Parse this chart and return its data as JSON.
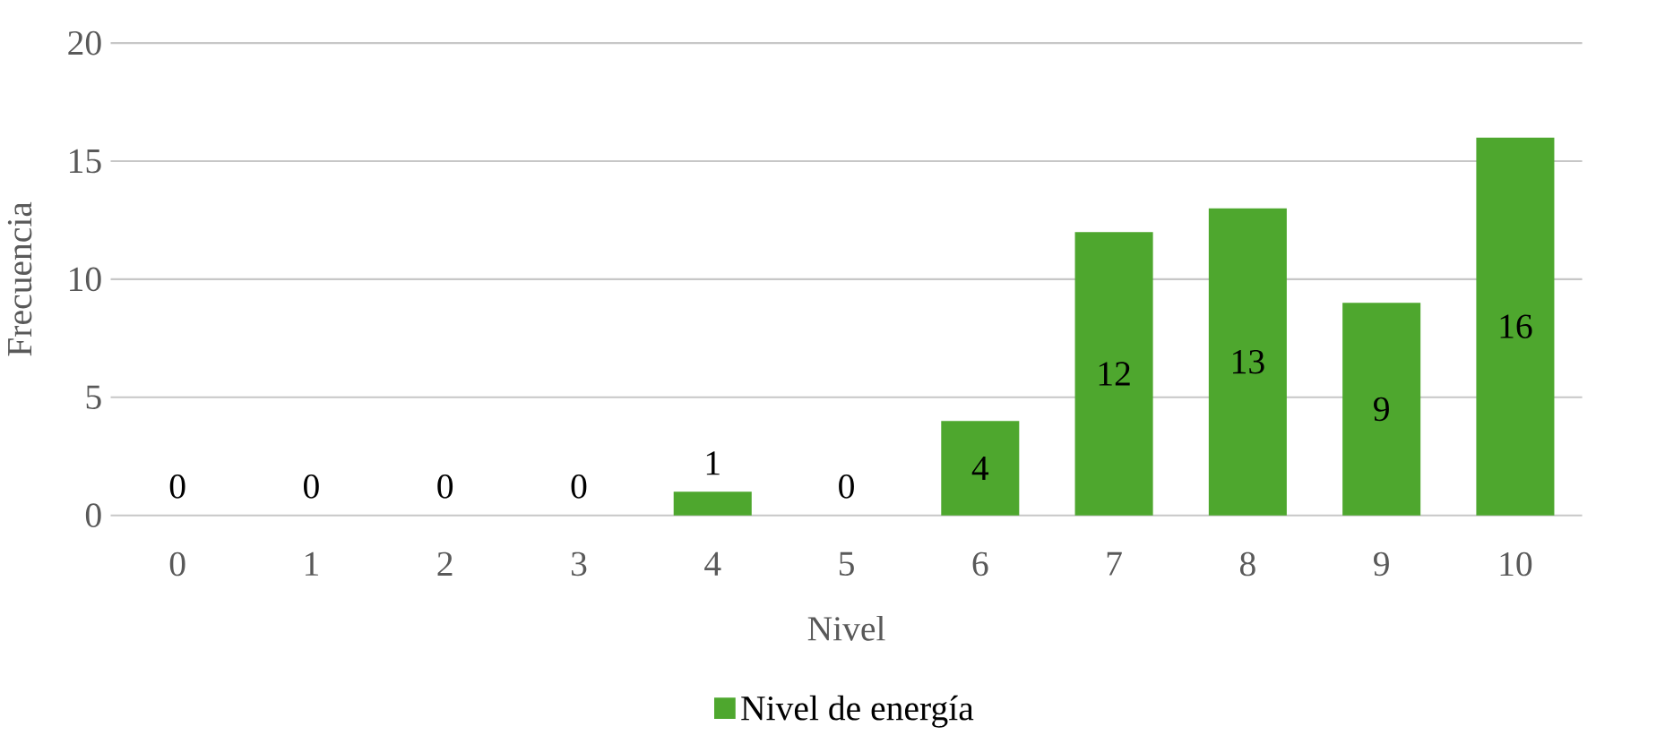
{
  "chart_data": {
    "type": "bar",
    "xlabel": "Nivel",
    "ylabel": "Frecuencia",
    "categories": [
      "0",
      "1",
      "2",
      "3",
      "4",
      "5",
      "6",
      "7",
      "8",
      "9",
      "10"
    ],
    "series": [
      {
        "name": "Nivel de energía",
        "color": "#4ea72e",
        "values": [
          0,
          0,
          0,
          0,
          1,
          0,
          4,
          12,
          13,
          9,
          16
        ]
      }
    ],
    "ylim": [
      0,
      20
    ],
    "yticks": [
      0,
      5,
      10,
      15,
      20
    ],
    "grid": "y",
    "legend": "bottom",
    "data_labels": true
  }
}
